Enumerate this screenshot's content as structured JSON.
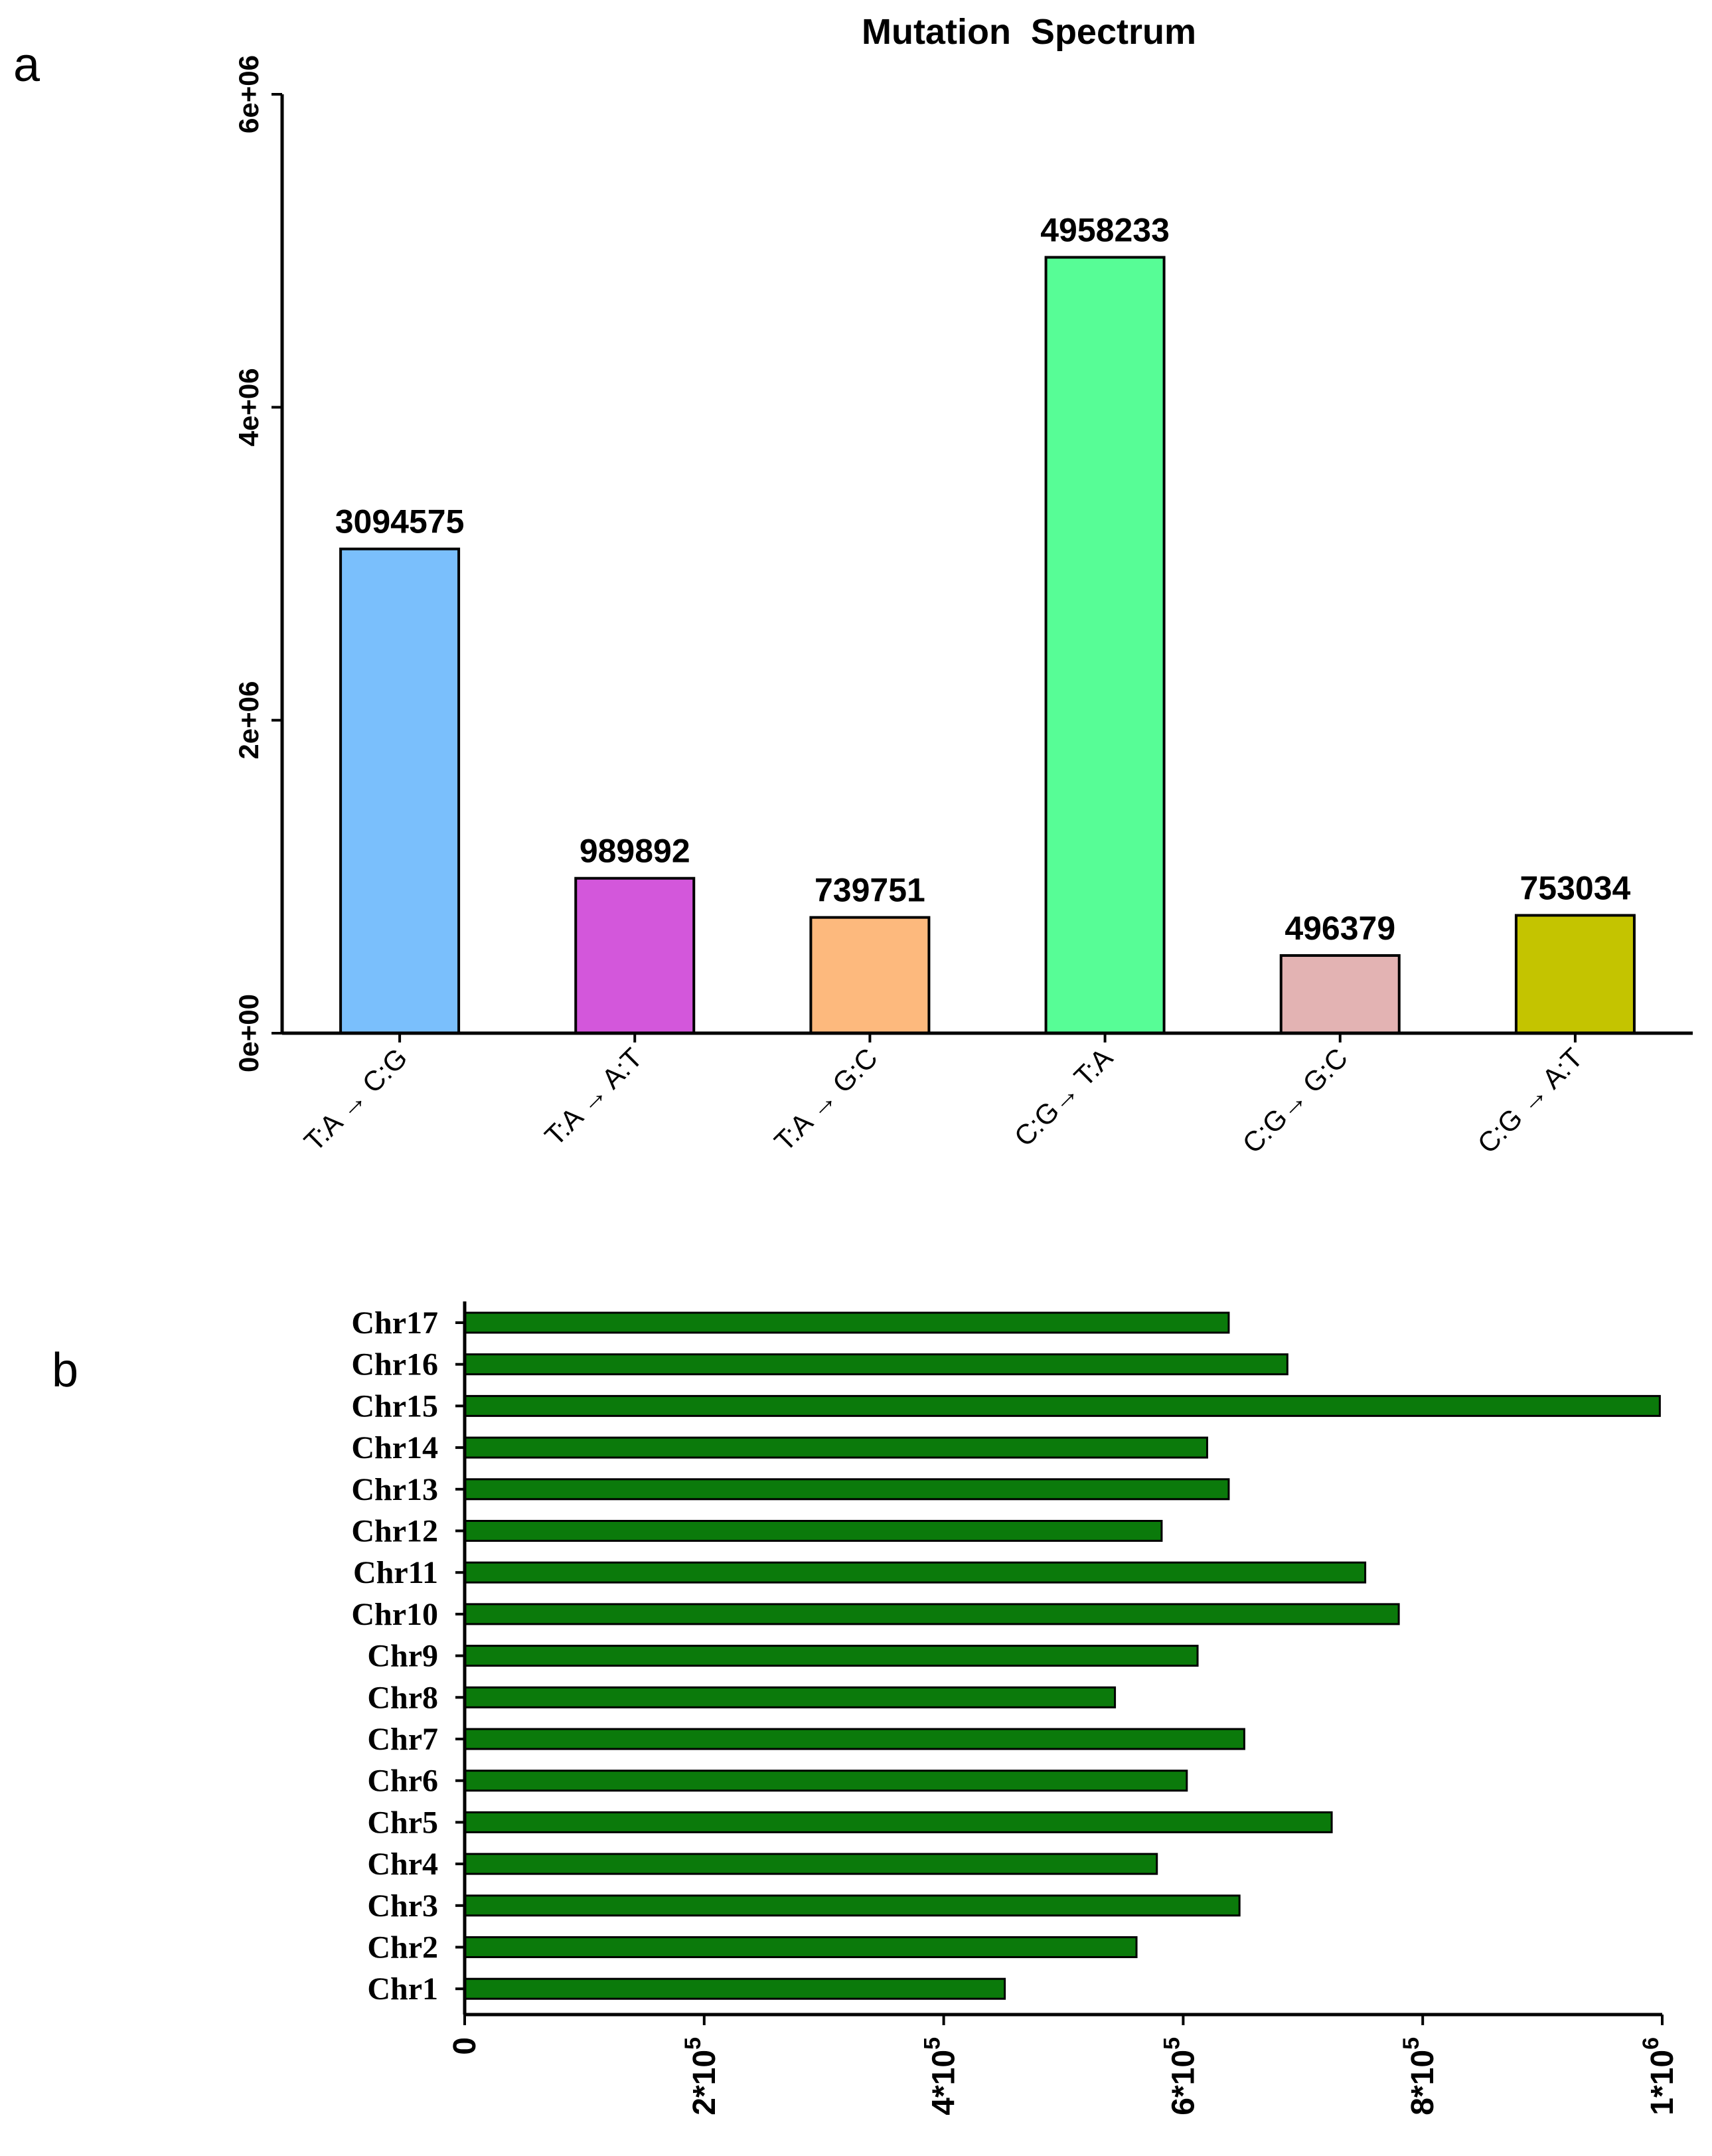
{
  "panel_labels": {
    "a": "a",
    "b": "b"
  },
  "chart_data": [
    {
      "type": "bar",
      "panel": "a",
      "title": "Mutation  Spectrum",
      "categories": [
        "T:A → C:G",
        "T:A → A:T",
        "T:A → G:C",
        "C:G→ T:A",
        "C:G→ G:C",
        "C:G → A:T"
      ],
      "values": [
        3094575,
        989892,
        739751,
        4958233,
        496379,
        753034
      ],
      "value_labels": [
        "3094575",
        "989892",
        "739751",
        "4958233",
        "496379",
        "753034"
      ],
      "colors": [
        "#7ABFFC",
        "#D357DB",
        "#FDB97D",
        "#57FD96",
        "#E3B3B3",
        "#C4C400"
      ],
      "ylim": [
        0,
        6000000
      ],
      "yticks": [
        0,
        2000000,
        4000000,
        6000000
      ],
      "ytick_labels": [
        "0e+00",
        "2e+06",
        "4e+06",
        "6e+06"
      ],
      "xlabel": "",
      "ylabel": ""
    },
    {
      "type": "bar",
      "orientation": "horizontal",
      "panel": "b",
      "title": "",
      "categories": [
        "Chr17",
        "Chr16",
        "Chr15",
        "Chr14",
        "Chr13",
        "Chr12",
        "Chr11",
        "Chr10",
        "Chr9",
        "Chr8",
        "Chr7",
        "Chr6",
        "Chr5",
        "Chr4",
        "Chr3",
        "Chr2",
        "Chr1"
      ],
      "values": [
        638000,
        687000,
        998000,
        620000,
        638000,
        582000,
        752000,
        780000,
        612000,
        543000,
        651000,
        603000,
        724000,
        578000,
        647000,
        561000,
        451000
      ],
      "bar_color": "#0B7A0B",
      "xlim": [
        0,
        1000000
      ],
      "xticks": [
        0,
        200000,
        400000,
        600000,
        800000,
        1000000
      ],
      "xtick_labels": [
        {
          "base": "0",
          "exp": ""
        },
        {
          "base": "2*10",
          "exp": "5"
        },
        {
          "base": "4*10",
          "exp": "5"
        },
        {
          "base": "6*10",
          "exp": "5"
        },
        {
          "base": "8*10",
          "exp": "5"
        },
        {
          "base": "1*10",
          "exp": "6"
        }
      ],
      "xlabel": "",
      "ylabel": ""
    }
  ]
}
